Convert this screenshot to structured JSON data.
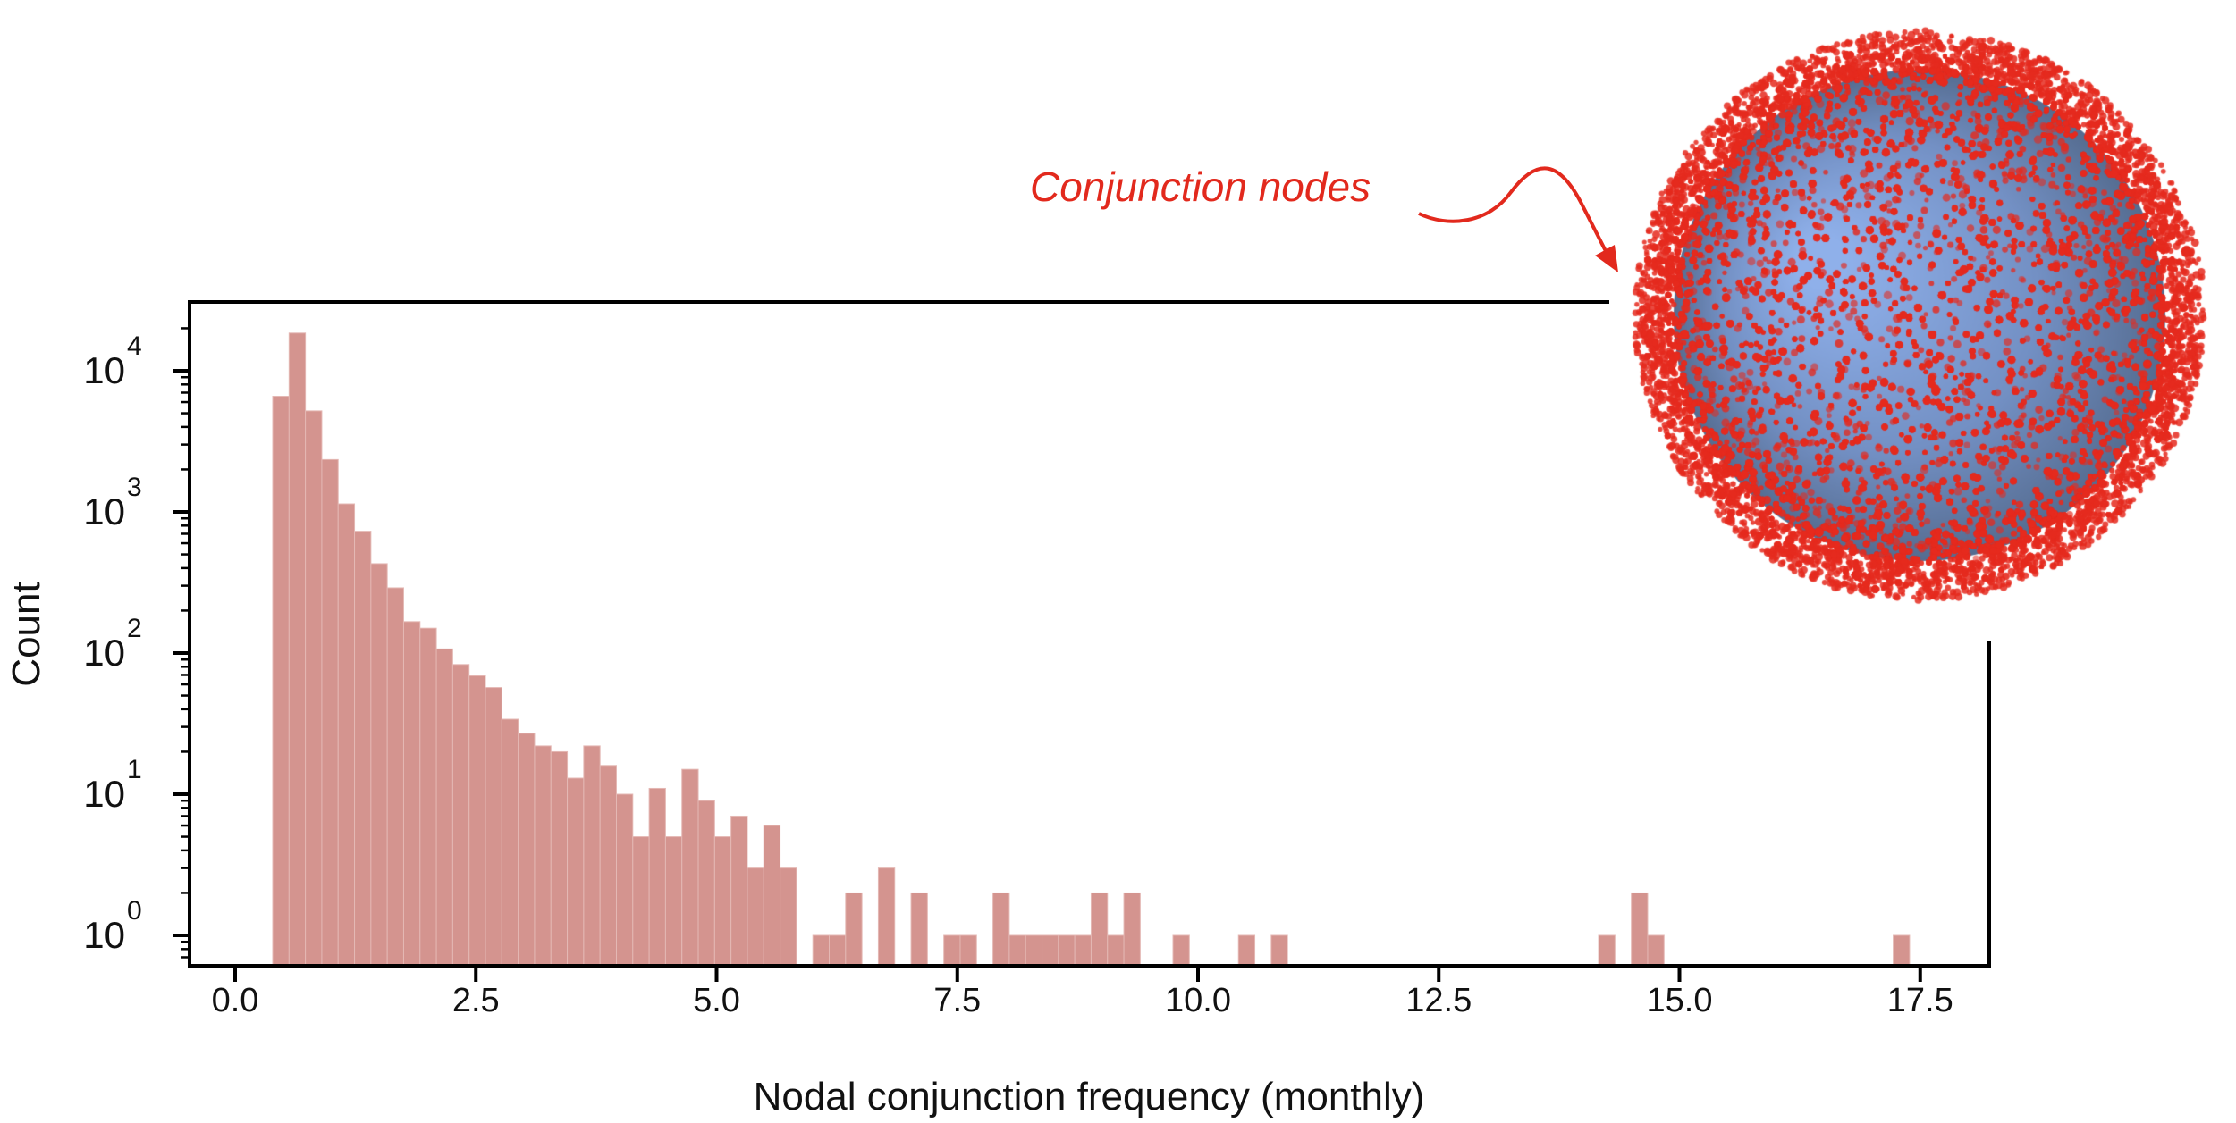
{
  "chart_data": {
    "type": "bar",
    "subtype": "histogram",
    "title": "",
    "xlabel": "Nodal conjunction frequency (monthly)",
    "ylabel": "Count",
    "yscale": "log",
    "xlim": [
      -0.47,
      18.2
    ],
    "ylim": [
      0.63,
      31000
    ],
    "grid": false,
    "bin_start": 0.39,
    "bin_width": 0.17,
    "counts": [
      6600,
      18500,
      5200,
      2350,
      1140,
      730,
      430,
      290,
      167,
      150,
      107,
      83,
      69,
      57,
      34,
      27,
      22,
      20,
      13,
      22,
      16,
      10,
      5,
      11,
      5,
      15,
      9,
      5,
      7,
      3,
      6,
      3,
      0,
      1,
      1,
      2,
      0,
      3,
      0,
      2,
      0,
      1,
      1,
      0,
      2,
      1,
      1,
      1,
      1,
      1,
      2,
      1,
      2,
      0,
      0,
      1,
      0,
      0,
      0,
      1,
      0,
      1,
      0,
      0,
      0,
      0,
      0,
      0,
      0,
      0,
      0,
      0,
      0,
      0,
      0,
      0,
      0,
      0,
      0,
      0,
      0,
      1,
      0,
      2,
      1,
      0,
      0,
      0,
      0,
      0,
      0,
      0,
      0,
      0,
      0,
      0,
      0,
      0,
      0,
      1
    ],
    "xticks": [
      0,
      2.5,
      5,
      7.5,
      10,
      12.5,
      15,
      17.5
    ],
    "xtick_labels": [
      "0.0",
      "2.5",
      "5.0",
      "7.5",
      "10.0",
      "12.5",
      "15.0",
      "17.5"
    ],
    "yticks": [
      1,
      10,
      100,
      1000,
      10000
    ],
    "ytick_labels": [
      {
        "base": "10",
        "exp": "0"
      },
      {
        "base": "10",
        "exp": "1"
      },
      {
        "base": "10",
        "exp": "2"
      },
      {
        "base": "10",
        "exp": "3"
      },
      {
        "base": "10",
        "exp": "4"
      }
    ],
    "bar_color": "#d4948f",
    "annotation": {
      "text": "Conjunction nodes",
      "color": "#e2291d"
    }
  },
  "inset": {
    "sphere_color": "#7f9fd6",
    "point_color": "#e52a1e"
  }
}
